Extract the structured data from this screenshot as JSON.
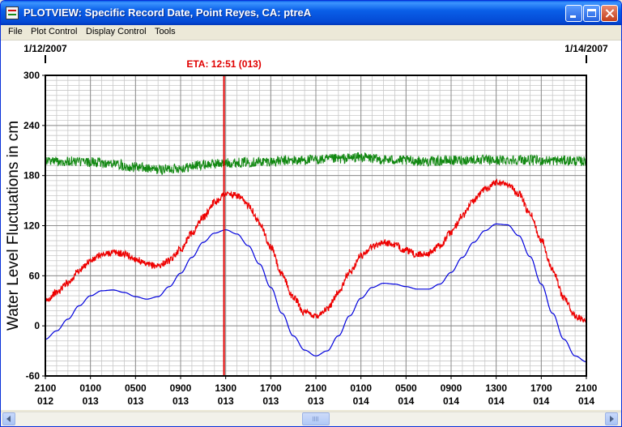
{
  "window": {
    "title": "PLOTVIEW: Specific Record Date, Point Reyes, CA: ptreA"
  },
  "menu": [
    "File",
    "Plot Control",
    "Display Control",
    "Tools"
  ],
  "chart_data": {
    "type": "line",
    "ylabel": "Water Level Fluctuations in cm",
    "ylim": [
      -60,
      300
    ],
    "y_ticks": [
      "300",
      "240",
      "180",
      "120",
      "60",
      "0",
      "-60"
    ],
    "date_start": "1/12/2007",
    "date_end": "1/14/2007",
    "eta_label": "ETA: 12:51 (013)",
    "eta_hour": 15.85,
    "x_range_hours": [
      0,
      48
    ],
    "x_ticks": [
      {
        "h": 0,
        "time": "2100",
        "day": "012"
      },
      {
        "h": 4,
        "time": "0100",
        "day": "013"
      },
      {
        "h": 8,
        "time": "0500",
        "day": "013"
      },
      {
        "h": 12,
        "time": "0900",
        "day": "013"
      },
      {
        "h": 16,
        "time": "1300",
        "day": "013"
      },
      {
        "h": 20,
        "time": "1700",
        "day": "013"
      },
      {
        "h": 24,
        "time": "2100",
        "day": "013"
      },
      {
        "h": 28,
        "time": "0100",
        "day": "014"
      },
      {
        "h": 32,
        "time": "0500",
        "day": "014"
      },
      {
        "h": 36,
        "time": "0900",
        "day": "014"
      },
      {
        "h": 40,
        "time": "1300",
        "day": "014"
      },
      {
        "h": 44,
        "time": "1700",
        "day": "014"
      },
      {
        "h": 48,
        "time": "2100",
        "day": "014"
      }
    ],
    "series": [
      {
        "color": "#0000dd",
        "x": [
          0,
          1,
          2,
          3,
          4,
          5,
          6,
          7,
          8,
          9,
          10,
          11,
          12,
          13,
          14,
          15,
          16,
          17,
          18,
          19,
          20,
          21,
          22,
          23,
          24,
          25,
          26,
          27,
          28,
          29,
          30,
          31,
          32,
          33,
          34,
          35,
          36,
          37,
          38,
          39,
          40,
          41,
          42,
          43,
          44,
          45,
          46,
          47,
          48
        ],
        "y": [
          -16,
          -6,
          8,
          24,
          36,
          42,
          43,
          40,
          35,
          32,
          35,
          47,
          63,
          82,
          100,
          111,
          115,
          110,
          96,
          74,
          46,
          15,
          -12,
          -29,
          -36,
          -30,
          -12,
          12,
          33,
          46,
          51,
          50,
          47,
          44,
          44,
          50,
          64,
          82,
          100,
          114,
          122,
          121,
          108,
          83,
          50,
          15,
          -16,
          -36,
          -43
        ]
      },
      {
        "color": "#ee0000",
        "x": [
          0,
          1,
          2,
          3,
          4,
          5,
          6,
          7,
          8,
          9,
          10,
          11,
          12,
          13,
          14,
          15,
          16,
          17,
          18,
          19,
          20,
          21,
          22,
          23,
          24,
          25,
          26,
          27,
          28,
          29,
          30,
          31,
          32,
          33,
          34,
          35,
          36,
          37,
          38,
          39,
          40,
          41,
          42,
          43,
          44,
          45,
          46,
          47,
          48
        ],
        "y": [
          30,
          40,
          52,
          66,
          78,
          85,
          88,
          86,
          80,
          73,
          72,
          78,
          92,
          111,
          130,
          148,
          158,
          156,
          145,
          124,
          94,
          61,
          34,
          16,
          12,
          20,
          40,
          64,
          84,
          95,
          100,
          97,
          90,
          85,
          87,
          96,
          112,
          132,
          150,
          164,
          172,
          170,
          158,
          134,
          103,
          68,
          34,
          12,
          5
        ]
      },
      {
        "color": "#118811",
        "x": [
          0,
          2,
          4,
          6,
          8,
          10,
          12,
          14,
          16,
          18,
          20,
          22,
          24,
          26,
          28,
          30,
          32,
          34,
          36,
          38,
          40,
          42,
          44,
          46,
          48
        ],
        "y": [
          198,
          197,
          196,
          194,
          190,
          187,
          189,
          193,
          195,
          196,
          197,
          198,
          199,
          200,
          202,
          199,
          198,
          197,
          198,
          199,
          198,
          199,
          198,
          198,
          197
        ]
      }
    ]
  }
}
